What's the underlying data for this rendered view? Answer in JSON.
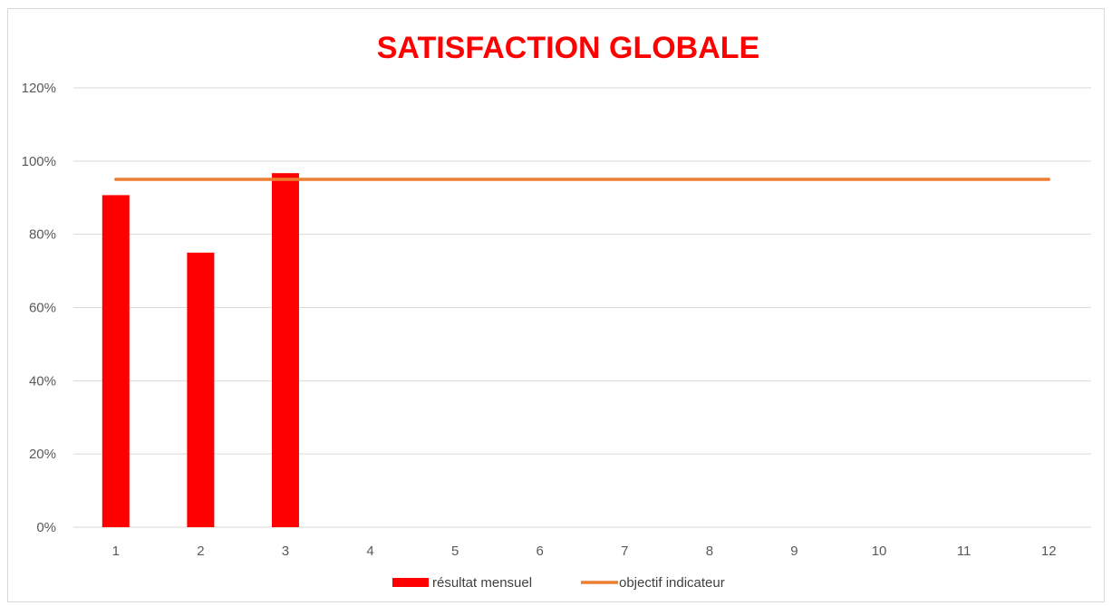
{
  "chart_data": {
    "type": "bar",
    "title": "SATISFACTION GLOBALE",
    "xlabel": "",
    "ylabel": "",
    "categories": [
      "1",
      "2",
      "3",
      "4",
      "5",
      "6",
      "7",
      "8",
      "9",
      "10",
      "11",
      "12"
    ],
    "y_ticks": [
      "0%",
      "20%",
      "40%",
      "60%",
      "80%",
      "100%",
      "120%"
    ],
    "ylim": [
      0,
      1.2
    ],
    "grid": true,
    "legend_position": "bottom",
    "series": [
      {
        "name": "résultat mensuel",
        "type": "bar",
        "color": "#ff0000",
        "values": [
          0.907,
          0.75,
          0.967,
          null,
          null,
          null,
          null,
          null,
          null,
          null,
          null,
          null
        ]
      },
      {
        "name": "objectif indicateur",
        "type": "line",
        "color": "#ed7d31",
        "values": [
          0.95,
          0.95,
          0.95,
          0.95,
          0.95,
          0.95,
          0.95,
          0.95,
          0.95,
          0.95,
          0.95,
          0.95
        ]
      }
    ]
  }
}
